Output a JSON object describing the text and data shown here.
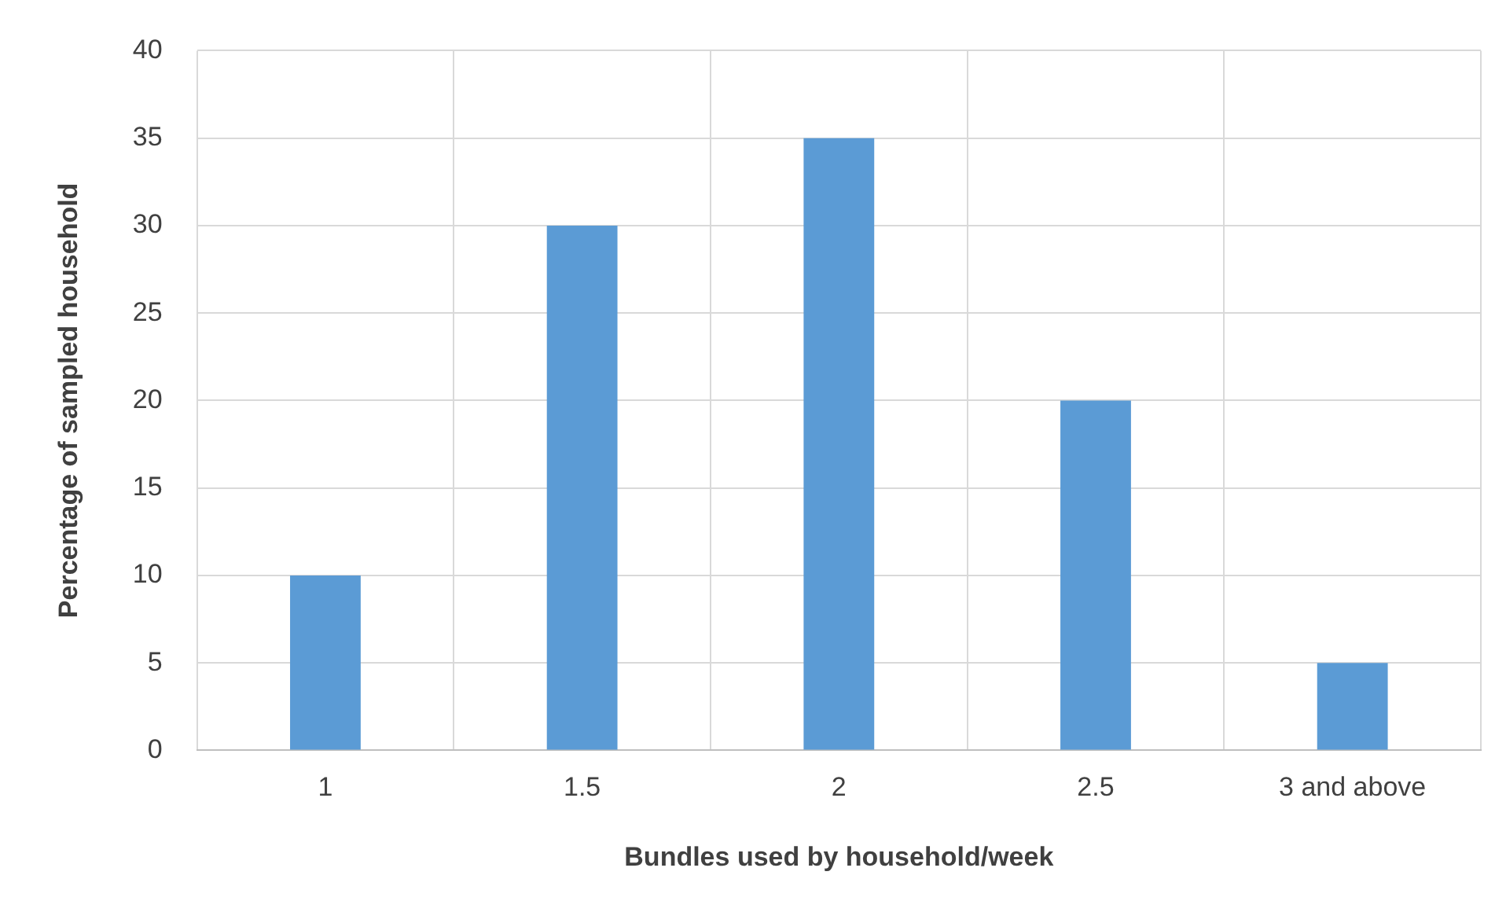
{
  "chart_data": {
    "type": "bar",
    "xlabel": "Bundles used by household/week",
    "ylabel": "Percentage of sampled household",
    "categories": [
      "1",
      "1.5",
      "2",
      "2.5",
      "3 and above"
    ],
    "values": [
      10,
      30,
      35,
      20,
      5
    ],
    "color": "#5b9bd5",
    "ylim": [
      0,
      40
    ],
    "yticks": [
      0,
      5,
      10,
      15,
      20,
      25,
      30,
      35,
      40
    ],
    "grid": true,
    "legend": false
  }
}
